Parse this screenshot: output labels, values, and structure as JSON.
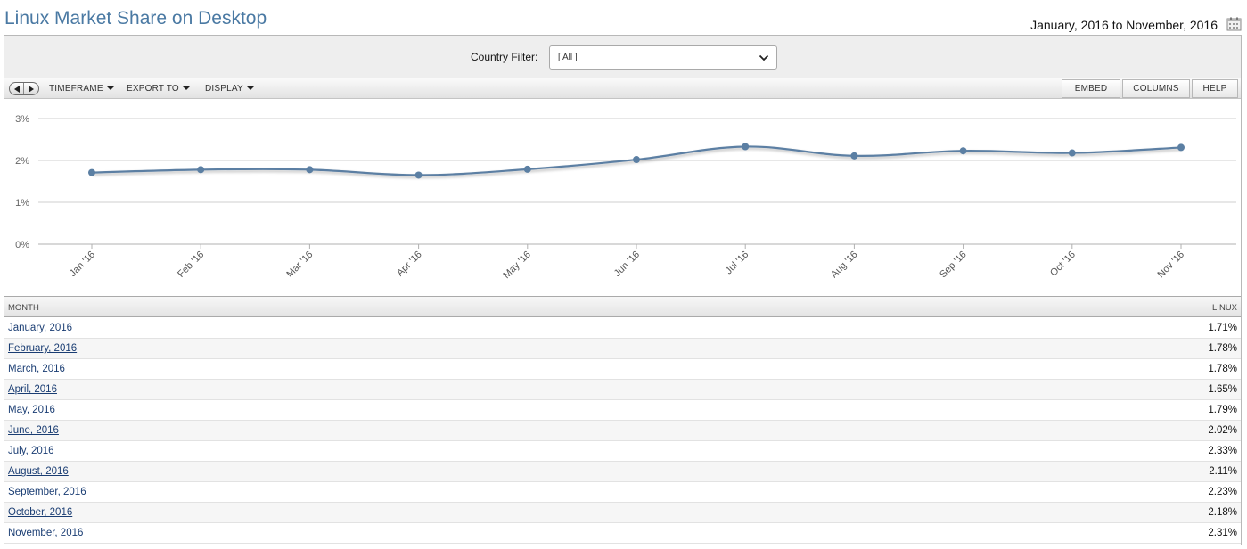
{
  "header": {
    "title": "Linux Market Share on Desktop",
    "date_range": "January, 2016 to November, 2016"
  },
  "filter": {
    "label": "Country Filter:",
    "value": "[ All ]"
  },
  "toolbar": {
    "menus": [
      "TIMEFRAME",
      "EXPORT TO",
      "DISPLAY"
    ],
    "buttons": [
      "EMBED",
      "COLUMNS",
      "HELP"
    ]
  },
  "chart_data": {
    "type": "line",
    "categories": [
      "Jan '16",
      "Feb '16",
      "Mar '16",
      "Apr '16",
      "May '16",
      "Jun '16",
      "Jul '16",
      "Aug '16",
      "Sep '16",
      "Oct '16",
      "Nov '16"
    ],
    "series": [
      {
        "values": [
          1.71,
          1.78,
          1.78,
          1.65,
          1.79,
          2.02,
          2.33,
          2.11,
          2.23,
          2.18,
          2.31
        ]
      }
    ],
    "y_ticks": [
      0,
      1,
      2,
      3
    ],
    "y_tick_labels": [
      "0%",
      "1%",
      "2%",
      "3%"
    ],
    "ylim": [
      0,
      3
    ],
    "grid": true,
    "line_color": "#5b7fa3"
  },
  "table": {
    "headers": {
      "month": "MONTH",
      "linux": "LINUX"
    },
    "rows": [
      {
        "month": "January, 2016",
        "value": "1.71%"
      },
      {
        "month": "February, 2016",
        "value": "1.78%"
      },
      {
        "month": "March, 2016",
        "value": "1.78%"
      },
      {
        "month": "April, 2016",
        "value": "1.65%"
      },
      {
        "month": "May, 2016",
        "value": "1.79%"
      },
      {
        "month": "June, 2016",
        "value": "2.02%"
      },
      {
        "month": "July, 2016",
        "value": "2.33%"
      },
      {
        "month": "August, 2016",
        "value": "2.11%"
      },
      {
        "month": "September, 2016",
        "value": "2.23%"
      },
      {
        "month": "October, 2016",
        "value": "2.18%"
      },
      {
        "month": "November, 2016",
        "value": "2.31%"
      }
    ]
  },
  "icons": {
    "calendar": "calendar-icon",
    "dropdown": "chevron-down-icon",
    "prev": "arrow-left-icon",
    "next": "arrow-right-icon"
  }
}
